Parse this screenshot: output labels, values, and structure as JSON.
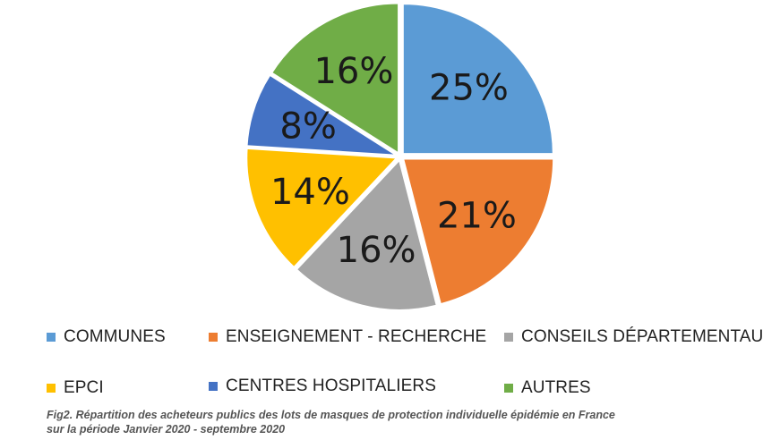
{
  "chart_data": {
    "type": "pie",
    "categories": [
      "COMMUNES",
      "ENSEIGNEMENT - RECHERCHE",
      "CONSEILS DÉPARTEMENTAUX",
      "EPCI",
      "CENTRES HOSPITALIERS",
      "AUTRES"
    ],
    "values": [
      25,
      21,
      16,
      14,
      8,
      16
    ],
    "labels": [
      "25%",
      "21%",
      "16%",
      "14%",
      "8%",
      "16%"
    ],
    "colors": [
      "#5B9BD5",
      "#ED7D31",
      "#A5A5A5",
      "#FFC000",
      "#4472C4",
      "#70AD47"
    ],
    "title": "",
    "legend_position": "bottom"
  },
  "caption": {
    "line1": "Fig2. Répartition des acheteurs publics des lots de masques de protection individuelle épidémie en France",
    "line2": "sur la période Janvier 2020 - septembre 2020"
  }
}
